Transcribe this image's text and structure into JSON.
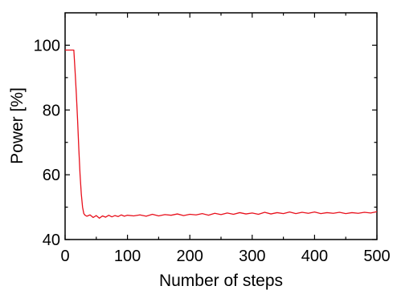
{
  "chart_data": {
    "type": "line",
    "title": "",
    "xlabel": "Number of steps",
    "ylabel": "Power [%]",
    "xlim": [
      0,
      500
    ],
    "ylim": [
      40,
      110
    ],
    "xticks": [
      0,
      100,
      200,
      300,
      400,
      500
    ],
    "yticks": [
      40,
      60,
      80,
      100
    ],
    "x_tick_labels": [
      "0",
      "100",
      "200",
      "300",
      "400",
      "500"
    ],
    "y_tick_labels": [
      "40",
      "60",
      "80",
      "100"
    ],
    "grid": false,
    "legend": "none",
    "series": [
      {
        "color": "#e8101c",
        "x": [
          0,
          14,
          16,
          18,
          20,
          22,
          24,
          26,
          28,
          30,
          32,
          35,
          40,
          45,
          50,
          55,
          60,
          65,
          70,
          75,
          80,
          85,
          90,
          95,
          100,
          110,
          120,
          130,
          140,
          150,
          160,
          170,
          180,
          190,
          200,
          210,
          220,
          230,
          240,
          250,
          260,
          270,
          280,
          290,
          300,
          310,
          320,
          330,
          340,
          350,
          360,
          370,
          380,
          390,
          400,
          410,
          420,
          430,
          440,
          450,
          460,
          470,
          480,
          490,
          500
        ],
        "y": [
          98.5,
          98.5,
          92,
          85,
          77,
          68,
          60,
          54,
          50,
          48,
          47.5,
          47.2,
          47.6,
          46.8,
          47.4,
          46.6,
          47.3,
          46.9,
          47.5,
          47.0,
          47.4,
          47.1,
          47.6,
          47.2,
          47.5,
          47.3,
          47.6,
          47.2,
          47.8,
          47.3,
          47.7,
          47.5,
          47.9,
          47.4,
          47.8,
          47.6,
          48.0,
          47.5,
          48.1,
          47.7,
          48.2,
          47.8,
          48.3,
          47.9,
          48.2,
          47.8,
          48.4,
          47.9,
          48.3,
          48.0,
          48.5,
          48.0,
          48.4,
          48.1,
          48.5,
          48.0,
          48.3,
          48.1,
          48.4,
          48.0,
          48.3,
          48.1,
          48.4,
          48.2,
          48.6
        ]
      }
    ]
  }
}
